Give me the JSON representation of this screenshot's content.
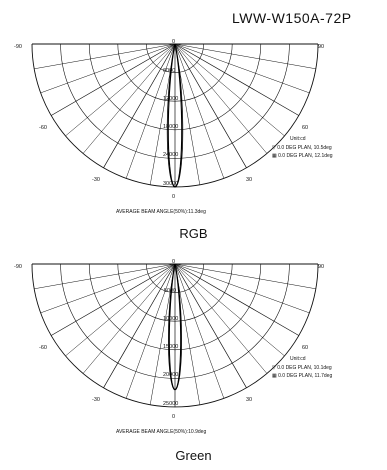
{
  "header": {
    "model": "LWW-W150A-72P"
  },
  "chart_data": [
    {
      "type": "polar",
      "caption": "RGB",
      "units": "Unit:cd",
      "angle_labels": [
        "-90",
        "-60",
        "-30",
        "0",
        "30",
        "60",
        "90"
      ],
      "radial_labels": [
        "6000",
        "12000",
        "18000",
        "24000",
        "30000"
      ],
      "rmax": 30000,
      "series": [
        {
          "name": "0.0 DEG PLAN, 10.5deg",
          "marker": "▽",
          "peak_cd": 30000,
          "beam_angle_deg": 10.5
        },
        {
          "name": "0.0 DEG PLAN, 12.1deg",
          "marker": "▦",
          "peak_cd": 30000,
          "beam_angle_deg": 12.1
        }
      ],
      "legend": [
        "▽ 0.0  DEG PLAN, 10.5deg",
        "▦ 0.0  DEG PLAN, 12.1deg"
      ],
      "average": "AVERAGE BEAM ANGLE(50%):11.3deg",
      "zero_label": "0"
    },
    {
      "type": "polar",
      "caption": "Green",
      "units": "Unit:cd",
      "angle_labels": [
        "-90",
        "-60",
        "-30",
        "0",
        "30",
        "60",
        "90"
      ],
      "radial_labels": [
        "5000",
        "10000",
        "15000",
        "20000",
        "25000"
      ],
      "rmax": 25000,
      "series": [
        {
          "name": "0.0 DEG PLAN, 10.1deg",
          "marker": "▽",
          "peak_cd": 22000,
          "beam_angle_deg": 10.1
        },
        {
          "name": "0.0 DEG PLAN, 11.7deg",
          "marker": "▦",
          "peak_cd": 22000,
          "beam_angle_deg": 11.7
        }
      ],
      "legend": [
        "▽ 0.0  DEG PLAN, 10.1deg",
        "▦ 0.0  DEG PLAN, 11.7deg"
      ],
      "average": "AVERAGE BEAM ANGLE(50%):10.9deg",
      "zero_label": "0"
    }
  ]
}
